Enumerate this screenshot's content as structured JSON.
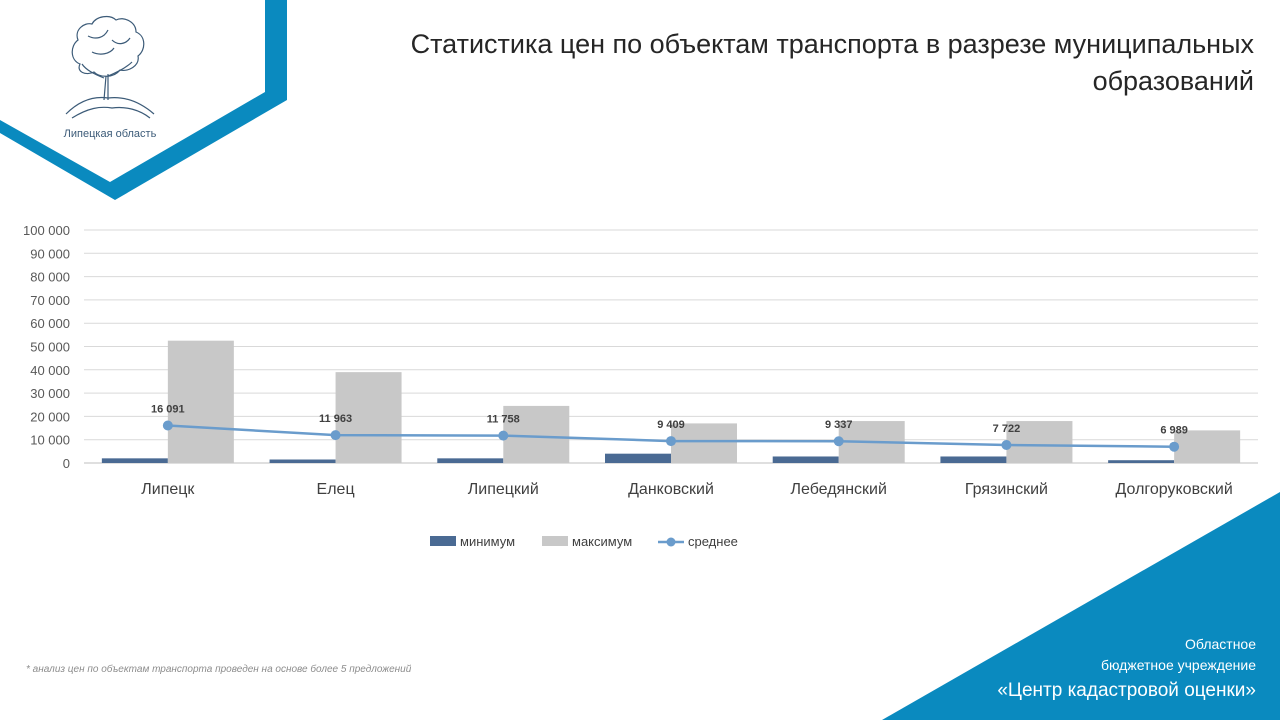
{
  "header": {
    "title": "Статистика цен по объектам транспорта в разрезе муниципальных образований",
    "logo_caption": "Липецкая область"
  },
  "footer": {
    "note": "* анализ цен по объектам транспорта проведен на основе более 5 предложений",
    "org_line1": "Областное",
    "org_line2": "бюджетное учреждение",
    "org_line3": "«Центр кадастровой оценки»"
  },
  "colors": {
    "accent": "#0a8abf",
    "minimum": "#4a6a93",
    "maximum": "#c8c8c8",
    "average": "#6a9ccc"
  },
  "chart_data": {
    "type": "bar",
    "title": "",
    "categories": [
      "Липецк",
      "Елец",
      "Липецкий",
      "Данковский",
      "Лебедянский",
      "Грязинский",
      "Долгоруковский"
    ],
    "series": [
      {
        "name": "минимум",
        "type": "bar",
        "values": [
          2000,
          1500,
          2000,
          4000,
          2800,
          2800,
          1200
        ]
      },
      {
        "name": "максимум",
        "type": "bar",
        "values": [
          52500,
          39000,
          24500,
          17000,
          18000,
          18000,
          14000
        ]
      },
      {
        "name": "среднее",
        "type": "line",
        "values": [
          16091,
          11963,
          11758,
          9409,
          9337,
          7722,
          6989
        ],
        "labels": [
          "16 091",
          "11 963",
          "11 758",
          "9 409",
          "9 337",
          "7 722",
          "6 989"
        ]
      }
    ],
    "ylim": [
      0,
      100000
    ],
    "yticks": [
      0,
      10000,
      20000,
      30000,
      40000,
      50000,
      60000,
      70000,
      80000,
      90000,
      100000
    ],
    "ytick_labels": [
      "0",
      "10 000",
      "20 000",
      "30 000",
      "40 000",
      "50 000",
      "60 000",
      "70 000",
      "80 000",
      "90 000",
      "100 000"
    ],
    "grid": true,
    "legend": "bottom"
  }
}
